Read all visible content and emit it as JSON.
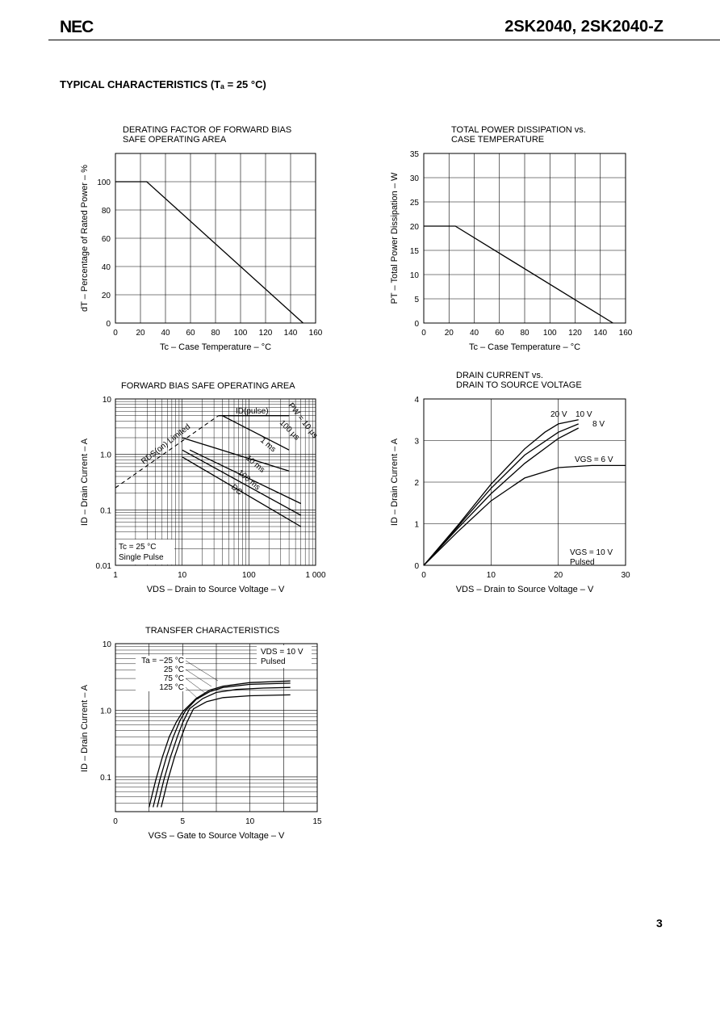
{
  "header": {
    "logo": "NEC",
    "part_number": "2SK2040, 2SK2040-Z"
  },
  "section_title": "TYPICAL CHARACTERISTICS (Tₐ = 25 °C)",
  "page_number": "3",
  "chart_data": [
    {
      "id": "derating",
      "type": "line",
      "title_lines": [
        "DERATING FACTOR OF FORWARD BIAS",
        "SAFE OPERATING AREA"
      ],
      "xlabel": "Tc – Case Temperature – °C",
      "ylabel": "dT – Percentage of Rated Power – %",
      "xlim": [
        0,
        160
      ],
      "ylim": [
        0,
        120
      ],
      "xticks": [
        "0",
        "20",
        "40",
        "60",
        "80",
        "100",
        "120",
        "140",
        "160"
      ],
      "yticks": [
        "0",
        "20",
        "40",
        "60",
        "80",
        "100"
      ],
      "grid": true,
      "series": [
        {
          "x": [
            0,
            25,
            150
          ],
          "y": [
            100,
            100,
            0
          ]
        }
      ]
    },
    {
      "id": "power",
      "type": "line",
      "title_lines": [
        "TOTAL POWER DISSIPATION vs.",
        "CASE TEMPERATURE"
      ],
      "xlabel": "Tc – Case Temperature – °C",
      "ylabel": "PT – Total Power Dissipation – W",
      "xlim": [
        0,
        160
      ],
      "ylim": [
        0,
        35
      ],
      "xticks": [
        "0",
        "20",
        "40",
        "60",
        "80",
        "100",
        "120",
        "140",
        "160"
      ],
      "yticks": [
        "0",
        "5",
        "10",
        "15",
        "20",
        "25",
        "30",
        "35"
      ],
      "grid": true,
      "series": [
        {
          "x": [
            0,
            25,
            150
          ],
          "y": [
            20,
            20,
            0
          ]
        }
      ]
    },
    {
      "id": "soa",
      "type": "line",
      "title_lines": [
        "FORWARD BIAS SAFE OPERATING AREA"
      ],
      "xlabel": "VDS – Drain to Source Voltage – V",
      "ylabel": "ID – Drain Current – A",
      "xscale": "log",
      "yscale": "log",
      "xlim": [
        1,
        1000
      ],
      "ylim": [
        0.01,
        10
      ],
      "xticks": [
        "1",
        "10",
        "100",
        "1 000"
      ],
      "yticks": [
        "0.01",
        "0.1",
        "1.0",
        "10"
      ],
      "grid": true,
      "annotations": [
        "RDS(on) Limited",
        "ID(pulse)",
        "PW = 10 μs",
        "100 μs",
        "1 ms",
        "10 ms",
        "100 ms",
        "DC",
        "Tc = 25 °C",
        "Single Pulse"
      ],
      "series": [
        {
          "name": "RDS(on) Limited",
          "x": [
            1,
            35
          ],
          "y": [
            0.25,
            5
          ]
        },
        {
          "name": "PW = 10 μs",
          "x": [
            35,
            400
          ],
          "y": [
            5,
            5
          ]
        },
        {
          "name": "100 μs",
          "x": [
            40,
            400
          ],
          "y": [
            5,
            1.2
          ]
        },
        {
          "name": "1 ms",
          "x": [
            10,
            400
          ],
          "y": [
            2,
            0.5
          ]
        },
        {
          "name": "10 ms",
          "x": [
            13,
            600
          ],
          "y": [
            1.2,
            0.13
          ]
        },
        {
          "name": "100 ms",
          "x": [
            10,
            600
          ],
          "y": [
            1.2,
            0.08
          ]
        },
        {
          "name": "DC",
          "x": [
            10,
            600
          ],
          "y": [
            0.9,
            0.05
          ]
        }
      ]
    },
    {
      "id": "drain",
      "type": "line",
      "title_lines": [
        "DRAIN CURRENT vs.",
        "DRAIN TO SOURCE VOLTAGE"
      ],
      "xlabel": "VDS – Drain to Source Voltage – V",
      "ylabel": "ID – Drain Current – A",
      "xlim": [
        0,
        30
      ],
      "ylim": [
        0,
        4
      ],
      "xticks": [
        "0",
        "10",
        "20",
        "30"
      ],
      "yticks": [
        "0",
        "1",
        "2",
        "3",
        "4"
      ],
      "grid": true,
      "annotations": [
        "20 V",
        "10 V",
        "8 V",
        "VGS = 6 V",
        "VGS = 10 V",
        "Pulsed"
      ],
      "series": [
        {
          "name": "20 V",
          "x": [
            0,
            5,
            10,
            15,
            18,
            20,
            23
          ],
          "y": [
            0,
            0.95,
            1.95,
            2.8,
            3.2,
            3.4,
            3.5
          ]
        },
        {
          "name": "10 V",
          "x": [
            0,
            5,
            10,
            15,
            20,
            23
          ],
          "y": [
            0,
            0.92,
            1.85,
            2.65,
            3.2,
            3.4
          ]
        },
        {
          "name": "8 V",
          "x": [
            0,
            5,
            10,
            15,
            20,
            23
          ],
          "y": [
            0,
            0.88,
            1.72,
            2.45,
            3.05,
            3.3
          ]
        },
        {
          "name": "VGS = 6 V",
          "x": [
            0,
            5,
            10,
            15,
            20,
            25,
            30
          ],
          "y": [
            0,
            0.8,
            1.55,
            2.1,
            2.35,
            2.4,
            2.4
          ]
        }
      ]
    },
    {
      "id": "transfer",
      "type": "line",
      "title_lines": [
        "TRANSFER CHARACTERISTICS"
      ],
      "xlabel": "VGS – Gate to Source Voltage – V",
      "ylabel": "ID – Drain Current – A",
      "yscale": "log",
      "xlim": [
        0,
        15
      ],
      "ylim": [
        0.03,
        10
      ],
      "xticks": [
        "0",
        "5",
        "10",
        "15"
      ],
      "yticks": [
        "0.1",
        "1.0",
        "10"
      ],
      "grid": true,
      "annotations": [
        "VDS = 10 V",
        "Pulsed"
      ],
      "series": [
        {
          "name": "Ta = −25 °C",
          "x": [
            2.5,
            3.0,
            3.5,
            4.0,
            4.5,
            5.0,
            6.0,
            7.0,
            8.0,
            10.0,
            13.0
          ],
          "y": [
            0.035,
            0.09,
            0.2,
            0.4,
            0.65,
            0.95,
            1.5,
            2.0,
            2.3,
            2.6,
            2.75
          ]
        },
        {
          "name": "25 °C",
          "x": [
            2.8,
            3.3,
            3.8,
            4.3,
            4.8,
            5.2,
            6.0,
            7.0,
            8.0,
            10.0,
            13.0
          ],
          "y": [
            0.035,
            0.09,
            0.2,
            0.4,
            0.7,
            0.98,
            1.45,
            1.9,
            2.2,
            2.45,
            2.55
          ]
        },
        {
          "name": "75 °C",
          "x": [
            3.1,
            3.6,
            4.1,
            4.6,
            5.0,
            5.5,
            6.5,
            7.5,
            9.0,
            11.0,
            13.0
          ],
          "y": [
            0.035,
            0.09,
            0.2,
            0.4,
            0.65,
            1.05,
            1.5,
            1.85,
            2.05,
            2.15,
            2.2
          ]
        },
        {
          "name": "125 °C",
          "x": [
            3.4,
            3.9,
            4.4,
            4.9,
            5.3,
            5.8,
            6.8,
            8.0,
            10.0,
            13.0
          ],
          "y": [
            0.035,
            0.09,
            0.2,
            0.4,
            0.65,
            1.05,
            1.35,
            1.55,
            1.65,
            1.7
          ]
        }
      ],
      "series_labels": [
        "Ta = −25 °C",
        "25 °C",
        "75 °C",
        "125 °C"
      ]
    }
  ]
}
